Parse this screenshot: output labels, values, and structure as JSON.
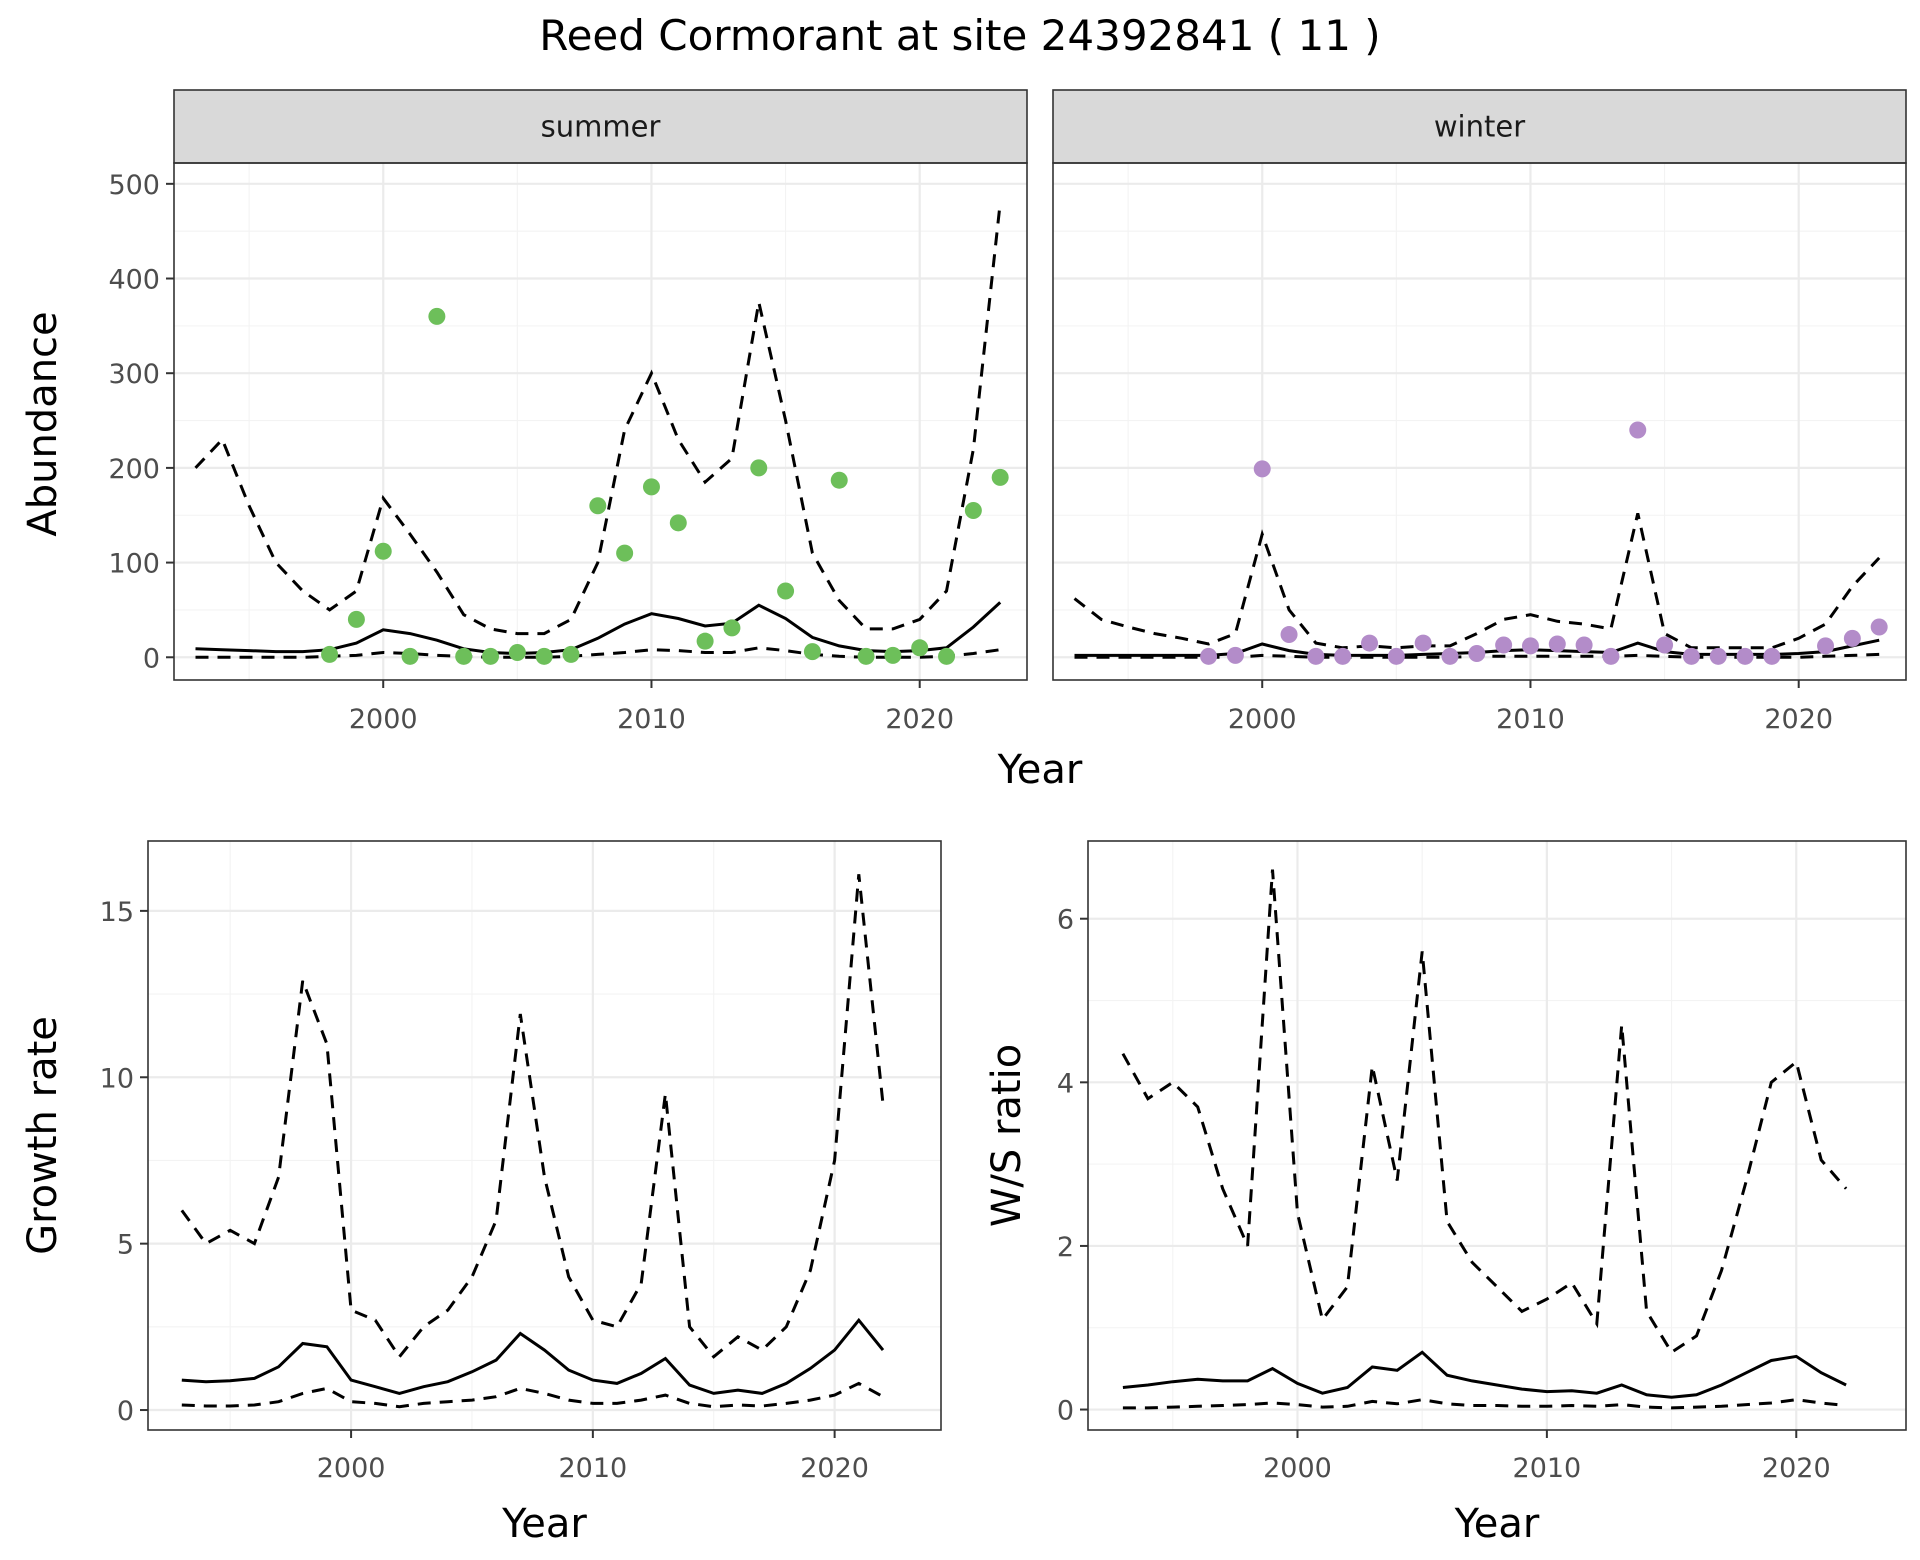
{
  "title": "Reed Cormorant at site 24392841 ( 11 )",
  "colors": {
    "summer": "#6dbf5a",
    "winter": "#b38cc9",
    "line": "#000000",
    "strip_bg": "#d9d9d9"
  },
  "chart_data": [
    {
      "type": "line",
      "facet": "summer",
      "strip_label": "summer",
      "xlabel": "Year",
      "ylabel": "Abundance",
      "xlim": [
        1992.2,
        2024
      ],
      "ylim": [
        -24,
        522
      ],
      "x_ticks": [
        2000,
        2010,
        2020
      ],
      "y_ticks": [
        0,
        100,
        200,
        300,
        400,
        500
      ],
      "grid": true,
      "points": {
        "x": [
          1998,
          1999,
          2000,
          2001,
          2002,
          2003,
          2004,
          2005,
          2006,
          2007,
          2008,
          2009,
          2010,
          2011,
          2012,
          2013,
          2014,
          2015,
          2016,
          2017,
          2018,
          2019,
          2020,
          2021,
          2022,
          2023
        ],
        "y": [
          3,
          40,
          112,
          1,
          360,
          1,
          1,
          5,
          1,
          3,
          160,
          110,
          180,
          142,
          17,
          31,
          200,
          70,
          6,
          187,
          1,
          2,
          10,
          1,
          155,
          190
        ]
      },
      "series": [
        {
          "style": "solid",
          "x": [
            1993,
            1994,
            1995,
            1996,
            1997,
            1998,
            1999,
            2000,
            2001,
            2002,
            2003,
            2004,
            2005,
            2006,
            2007,
            2008,
            2009,
            2010,
            2011,
            2012,
            2013,
            2014,
            2015,
            2016,
            2017,
            2018,
            2019,
            2020,
            2021,
            2022,
            2023
          ],
          "y": [
            9,
            8,
            7,
            6,
            6,
            8,
            15,
            29,
            25,
            18,
            9,
            5,
            4,
            5,
            8,
            20,
            35,
            46,
            41,
            33,
            36,
            55,
            41,
            21,
            12,
            7,
            6,
            7,
            10,
            32,
            58
          ]
        },
        {
          "style": "dashed",
          "x": [
            1993,
            1994,
            1995,
            1996,
            1997,
            1998,
            1999,
            2000,
            2001,
            2002,
            2003,
            2004,
            2005,
            2006,
            2007,
            2008,
            2009,
            2010,
            2011,
            2012,
            2013,
            2014,
            2015,
            2016,
            2017,
            2018,
            2019,
            2020,
            2021,
            2022,
            2023
          ],
          "y": [
            200,
            230,
            160,
            100,
            70,
            50,
            70,
            168,
            130,
            90,
            45,
            30,
            25,
            25,
            40,
            100,
            240,
            300,
            230,
            185,
            210,
            375,
            250,
            110,
            60,
            30,
            30,
            40,
            70,
            220,
            480
          ]
        },
        {
          "style": "dashed",
          "x": [
            1993,
            1994,
            1995,
            1996,
            1997,
            1998,
            1999,
            2000,
            2001,
            2002,
            2003,
            2004,
            2005,
            2006,
            2007,
            2008,
            2009,
            2010,
            2011,
            2012,
            2013,
            2014,
            2015,
            2016,
            2017,
            2018,
            2019,
            2020,
            2021,
            2022,
            2023
          ],
          "y": [
            0,
            0,
            0,
            0,
            0,
            1,
            2,
            5,
            4,
            2,
            1,
            0,
            0,
            0,
            1,
            3,
            5,
            8,
            7,
            5,
            5,
            10,
            7,
            3,
            1,
            0,
            0,
            0,
            1,
            4,
            8
          ]
        }
      ]
    },
    {
      "type": "line",
      "facet": "winter",
      "strip_label": "winter",
      "xlabel": "Year",
      "ylabel": "Abundance",
      "xlim": [
        1992.2,
        2024
      ],
      "ylim": [
        -24,
        522
      ],
      "x_ticks": [
        2000,
        2010,
        2020
      ],
      "y_ticks": [
        0,
        100,
        200,
        300,
        400,
        500
      ],
      "grid": true,
      "points": {
        "x": [
          1998,
          1999,
          2000,
          2001,
          2002,
          2003,
          2004,
          2005,
          2006,
          2007,
          2008,
          2009,
          2010,
          2011,
          2012,
          2013,
          2014,
          2015,
          2016,
          2017,
          2018,
          2019,
          2021,
          2022,
          2023
        ],
        "y": [
          1,
          2,
          199,
          24,
          1,
          1,
          15,
          1,
          15,
          1,
          4,
          13,
          12,
          14,
          13,
          1,
          240,
          13,
          1,
          1,
          1,
          1,
          12,
          20,
          32
        ]
      },
      "series": [
        {
          "style": "solid",
          "x": [
            1993,
            1994,
            1995,
            1996,
            1997,
            1998,
            1999,
            2000,
            2001,
            2002,
            2003,
            2004,
            2005,
            2006,
            2007,
            2008,
            2009,
            2010,
            2011,
            2012,
            2013,
            2014,
            2015,
            2016,
            2017,
            2018,
            2019,
            2020,
            2021,
            2022,
            2023
          ],
          "y": [
            2,
            2,
            2,
            2,
            2,
            2,
            4,
            14,
            7,
            3,
            2,
            2,
            2,
            3,
            4,
            5,
            7,
            8,
            7,
            6,
            5,
            15,
            6,
            3,
            3,
            3,
            3,
            4,
            6,
            12,
            18
          ]
        },
        {
          "style": "dashed",
          "x": [
            1993,
            1994,
            1995,
            1996,
            1997,
            1998,
            1999,
            2000,
            2001,
            2002,
            2003,
            2004,
            2005,
            2006,
            2007,
            2008,
            2009,
            2010,
            2011,
            2012,
            2013,
            2014,
            2015,
            2016,
            2017,
            2018,
            2019,
            2020,
            2021,
            2022,
            2023
          ],
          "y": [
            62,
            40,
            32,
            25,
            20,
            14,
            25,
            130,
            50,
            15,
            10,
            12,
            10,
            12,
            12,
            25,
            40,
            45,
            38,
            35,
            30,
            152,
            25,
            10,
            10,
            10,
            10,
            20,
            35,
            75,
            105
          ]
        },
        {
          "style": "dashed",
          "x": [
            1993,
            1994,
            1995,
            1996,
            1997,
            1998,
            1999,
            2000,
            2001,
            2002,
            2003,
            2004,
            2005,
            2006,
            2007,
            2008,
            2009,
            2010,
            2011,
            2012,
            2013,
            2014,
            2015,
            2016,
            2017,
            2018,
            2019,
            2020,
            2021,
            2022,
            2023
          ],
          "y": [
            0,
            0,
            0,
            0,
            0,
            0,
            0,
            2,
            1,
            0,
            0,
            0,
            0,
            0,
            0,
            1,
            1,
            1,
            1,
            1,
            1,
            2,
            1,
            0,
            0,
            0,
            0,
            0,
            1,
            2,
            3
          ]
        }
      ]
    },
    {
      "type": "line",
      "xlabel": "Year",
      "ylabel": "Growth rate",
      "xlim": [
        1991.6,
        2024.4
      ],
      "ylim": [
        -0.6,
        17.1
      ],
      "x_ticks": [
        2000,
        2010,
        2020
      ],
      "y_ticks": [
        0,
        5,
        10,
        15
      ],
      "grid": true,
      "series": [
        {
          "style": "solid",
          "x": [
            1993,
            1994,
            1995,
            1996,
            1997,
            1998,
            1999,
            2000,
            2001,
            2002,
            2003,
            2004,
            2005,
            2006,
            2007,
            2008,
            2009,
            2010,
            2011,
            2012,
            2013,
            2014,
            2015,
            2016,
            2017,
            2018,
            2019,
            2020,
            2021,
            2022
          ],
          "y": [
            0.9,
            0.85,
            0.88,
            0.95,
            1.3,
            2.0,
            1.9,
            0.9,
            0.7,
            0.5,
            0.7,
            0.85,
            1.15,
            1.5,
            2.3,
            1.8,
            1.2,
            0.9,
            0.8,
            1.1,
            1.55,
            0.75,
            0.5,
            0.6,
            0.5,
            0.8,
            1.25,
            1.8,
            2.7,
            1.8
          ]
        },
        {
          "style": "dashed",
          "x": [
            1993,
            1994,
            1995,
            1996,
            1997,
            1998,
            1999,
            2000,
            2001,
            2002,
            2003,
            2004,
            2005,
            2006,
            2007,
            2008,
            2009,
            2010,
            2011,
            2012,
            2013,
            2014,
            2015,
            2016,
            2017,
            2018,
            2019,
            2020,
            2021,
            2022
          ],
          "y": [
            6.0,
            5.0,
            5.4,
            5.0,
            7.0,
            12.9,
            11.0,
            3.0,
            2.7,
            1.6,
            2.5,
            3.0,
            4.0,
            5.7,
            11.9,
            7.0,
            4.0,
            2.7,
            2.5,
            3.8,
            9.5,
            2.5,
            1.6,
            2.2,
            1.8,
            2.5,
            4.2,
            7.5,
            16.1,
            9.2
          ]
        },
        {
          "style": "dashed",
          "x": [
            1993,
            1994,
            1995,
            1996,
            1997,
            1998,
            1999,
            2000,
            2001,
            2002,
            2003,
            2004,
            2005,
            2006,
            2007,
            2008,
            2009,
            2010,
            2011,
            2012,
            2013,
            2014,
            2015,
            2016,
            2017,
            2018,
            2019,
            2020,
            2021,
            2022
          ],
          "y": [
            0.15,
            0.12,
            0.12,
            0.15,
            0.25,
            0.5,
            0.65,
            0.25,
            0.2,
            0.1,
            0.2,
            0.25,
            0.3,
            0.4,
            0.65,
            0.5,
            0.3,
            0.2,
            0.2,
            0.3,
            0.45,
            0.2,
            0.1,
            0.15,
            0.12,
            0.2,
            0.3,
            0.45,
            0.8,
            0.4
          ]
        }
      ]
    },
    {
      "type": "line",
      "xlabel": "Year",
      "ylabel": "W/S ratio",
      "xlim": [
        1991.6,
        2024.4
      ],
      "ylim": [
        -0.25,
        6.95
      ],
      "x_ticks": [
        2000,
        2010,
        2020
      ],
      "y_ticks": [
        0,
        2,
        4,
        6
      ],
      "grid": true,
      "series": [
        {
          "style": "solid",
          "x": [
            1993,
            1994,
            1995,
            1996,
            1997,
            1998,
            1999,
            2000,
            2001,
            2002,
            2003,
            2004,
            2005,
            2006,
            2007,
            2008,
            2009,
            2010,
            2011,
            2012,
            2013,
            2014,
            2015,
            2016,
            2017,
            2018,
            2019,
            2020,
            2021,
            2022
          ],
          "y": [
            0.27,
            0.3,
            0.34,
            0.37,
            0.35,
            0.35,
            0.5,
            0.32,
            0.2,
            0.27,
            0.52,
            0.48,
            0.7,
            0.42,
            0.35,
            0.3,
            0.25,
            0.22,
            0.23,
            0.2,
            0.3,
            0.18,
            0.15,
            0.18,
            0.3,
            0.45,
            0.6,
            0.65,
            0.45,
            0.3
          ]
        },
        {
          "style": "dashed",
          "x": [
            1993,
            1994,
            1995,
            1996,
            1997,
            1998,
            1999,
            2000,
            2001,
            2002,
            2003,
            2004,
            2005,
            2006,
            2007,
            2008,
            2009,
            2010,
            2011,
            2012,
            2013,
            2014,
            2015,
            2016,
            2017,
            2018,
            2019,
            2020,
            2021,
            2022
          ],
          "y": [
            4.35,
            3.8,
            4.0,
            3.7,
            2.7,
            2.0,
            6.6,
            2.4,
            1.1,
            1.5,
            4.2,
            2.8,
            5.6,
            2.3,
            1.8,
            1.5,
            1.2,
            1.35,
            1.55,
            1.05,
            4.7,
            1.2,
            0.7,
            0.9,
            1.7,
            2.8,
            4.0,
            4.25,
            3.05,
            2.7
          ]
        },
        {
          "style": "dashed",
          "x": [
            1993,
            1994,
            1995,
            1996,
            1997,
            1998,
            1999,
            2000,
            2001,
            2002,
            2003,
            2004,
            2005,
            2006,
            2007,
            2008,
            2009,
            2010,
            2011,
            2012,
            2013,
            2014,
            2015,
            2016,
            2017,
            2018,
            2019,
            2020,
            2021,
            2022
          ],
          "y": [
            0.02,
            0.02,
            0.03,
            0.04,
            0.05,
            0.06,
            0.08,
            0.06,
            0.03,
            0.04,
            0.1,
            0.07,
            0.12,
            0.07,
            0.05,
            0.05,
            0.04,
            0.04,
            0.05,
            0.04,
            0.06,
            0.03,
            0.02,
            0.03,
            0.04,
            0.06,
            0.08,
            0.12,
            0.08,
            0.05
          ]
        }
      ]
    }
  ]
}
